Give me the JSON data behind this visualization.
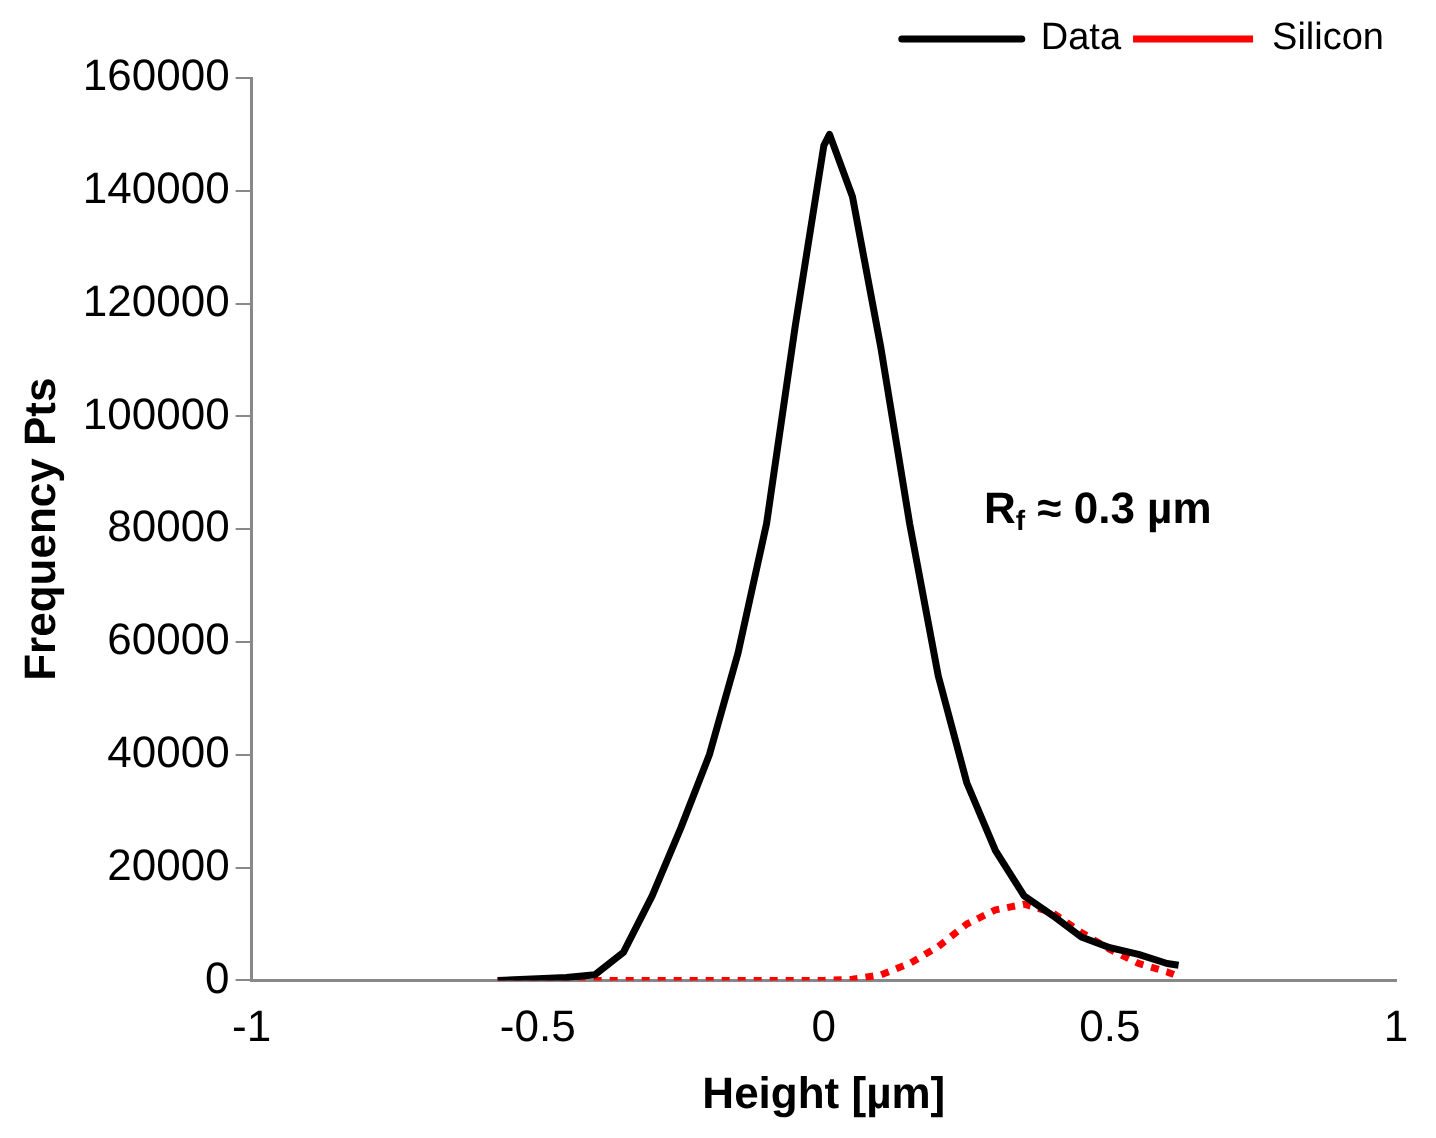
{
  "chart_data": {
    "type": "line",
    "xlabel": "Height [µm]",
    "ylabel": "Frequency Pts",
    "xlim": [
      -1,
      1
    ],
    "xticks": [
      -1,
      -0.5,
      0,
      0.5,
      1
    ],
    "ylim": [
      0,
      160000
    ],
    "yticks": [
      0,
      20000,
      40000,
      60000,
      80000,
      100000,
      120000,
      140000,
      160000
    ],
    "grid": false,
    "legend": "top right",
    "marker": "none",
    "annotations": [
      "R$_{f}$ ≈ 0.3 µm"
    ],
    "series": [
      {
        "name": "Data",
        "color": "#000000",
        "line_style": "solid",
        "x": [
          -0.57,
          -0.5,
          -0.45,
          -0.4,
          -0.35,
          -0.3,
          -0.25,
          -0.2,
          -0.15,
          -0.1,
          -0.05,
          0,
          0.01,
          0.05,
          0.1,
          0.15,
          0.2,
          0.25,
          0.3,
          0.35,
          0.4,
          0.45,
          0.5,
          0.55,
          0.6,
          0.62
        ],
        "values": [
          0,
          300,
          500,
          1000,
          5000,
          15000,
          27000,
          40000,
          58000,
          81000,
          116000,
          148000,
          150000,
          139000,
          112000,
          81000,
          54000,
          35000,
          23000,
          15000,
          11500,
          7700,
          5800,
          4600,
          3000,
          2700
        ]
      },
      {
        "name": "Silicon",
        "color": "#ff0000",
        "line_style": "dotted",
        "x": [
          -0.57,
          -0.3,
          0,
          0.05,
          0.1,
          0.15,
          0.2,
          0.25,
          0.3,
          0.35,
          0.4,
          0.45,
          0.5,
          0.55,
          0.6,
          0.62
        ],
        "values": [
          0,
          0,
          0,
          200,
          1000,
          3000,
          6000,
          10000,
          12500,
          13500,
          12000,
          8500,
          5500,
          3000,
          1500,
          700
        ]
      }
    ]
  }
}
